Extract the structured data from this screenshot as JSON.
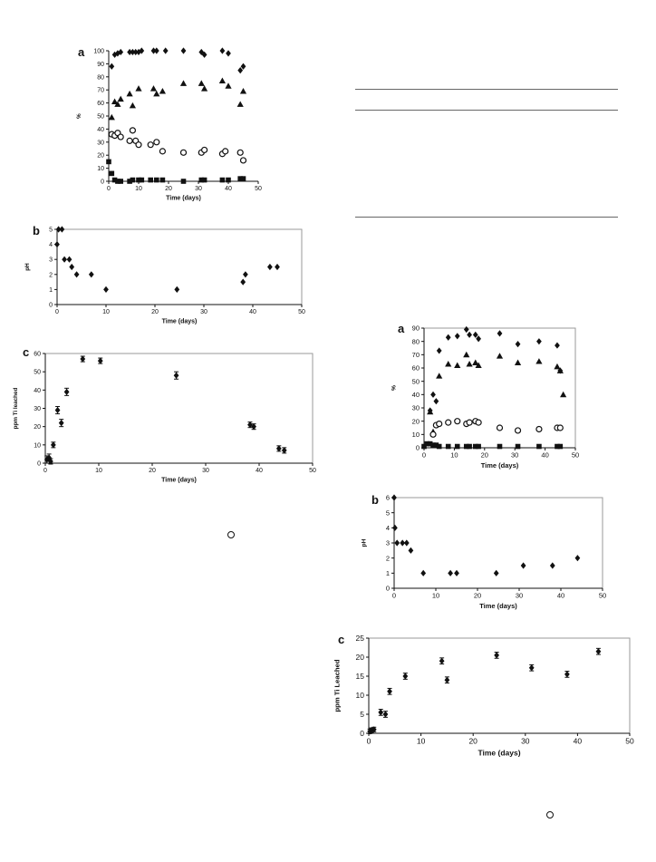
{
  "chart_data": [
    {
      "panel_label": "a",
      "type": "scatter",
      "xlabel": "Time (days)",
      "ylabel": "%",
      "xlim": [
        0,
        50
      ],
      "ylim": [
        0,
        100
      ],
      "xticks": [
        0,
        10,
        20,
        30,
        40,
        50
      ],
      "yticks": [
        0,
        10,
        20,
        30,
        40,
        50,
        60,
        70,
        80,
        90,
        100
      ],
      "frame": false,
      "series": [
        {
          "marker": "diamond",
          "points": [
            [
              1,
              88
            ],
            [
              2,
              97
            ],
            [
              3,
              98
            ],
            [
              4,
              99
            ],
            [
              7,
              99
            ],
            [
              8,
              99
            ],
            [
              9,
              99
            ],
            [
              10,
              99
            ],
            [
              11,
              100
            ],
            [
              15,
              100
            ],
            [
              16,
              100
            ],
            [
              19,
              100
            ],
            [
              25,
              100
            ],
            [
              31,
              99
            ],
            [
              32,
              97
            ],
            [
              38,
              100
            ],
            [
              40,
              98
            ],
            [
              44,
              85
            ],
            [
              45,
              88
            ]
          ]
        },
        {
          "marker": "triangle",
          "points": [
            [
              1,
              49
            ],
            [
              2,
              61
            ],
            [
              3,
              59
            ],
            [
              4,
              63
            ],
            [
              7,
              67
            ],
            [
              8,
              58
            ],
            [
              10,
              71
            ],
            [
              15,
              71
            ],
            [
              16,
              67
            ],
            [
              18,
              69
            ],
            [
              25,
              75
            ],
            [
              31,
              75
            ],
            [
              32,
              71
            ],
            [
              38,
              77
            ],
            [
              40,
              73
            ],
            [
              44,
              59
            ],
            [
              45,
              69
            ]
          ]
        },
        {
          "marker": "open-circle",
          "points": [
            [
              1,
              36
            ],
            [
              2,
              35
            ],
            [
              3,
              37
            ],
            [
              4,
              34
            ],
            [
              7,
              31
            ],
            [
              8,
              39
            ],
            [
              9,
              31
            ],
            [
              10,
              28
            ],
            [
              14,
              28
            ],
            [
              16,
              30
            ],
            [
              18,
              23
            ],
            [
              25,
              22
            ],
            [
              31,
              22
            ],
            [
              32,
              24
            ],
            [
              38,
              21
            ],
            [
              39,
              23
            ],
            [
              44,
              22
            ],
            [
              45,
              16
            ]
          ]
        },
        {
          "marker": "square",
          "points": [
            [
              0,
              15
            ],
            [
              1,
              6
            ],
            [
              2,
              1
            ],
            [
              3,
              0
            ],
            [
              4,
              0
            ],
            [
              7,
              0
            ],
            [
              8,
              1
            ],
            [
              10,
              1
            ],
            [
              11,
              1
            ],
            [
              14,
              1
            ],
            [
              16,
              1
            ],
            [
              18,
              1
            ],
            [
              25,
              0
            ],
            [
              31,
              1
            ],
            [
              32,
              1
            ],
            [
              38,
              1
            ],
            [
              40,
              1
            ],
            [
              44,
              2
            ],
            [
              45,
              2
            ]
          ]
        }
      ]
    },
    {
      "panel_label": "b",
      "type": "scatter",
      "xlabel": "Time (days)",
      "ylabel": "pH",
      "xlim": [
        0,
        50
      ],
      "ylim": [
        0,
        5
      ],
      "xticks": [
        0,
        10,
        20,
        30,
        40,
        50
      ],
      "yticks": [
        0,
        1,
        2,
        3,
        4,
        5
      ],
      "frame": true,
      "series": [
        {
          "marker": "diamond",
          "points": [
            [
              0,
              4
            ],
            [
              0.3,
              5
            ],
            [
              1,
              5
            ],
            [
              1.5,
              3
            ],
            [
              2.5,
              3
            ],
            [
              3,
              2.5
            ],
            [
              4,
              2
            ],
            [
              7,
              2
            ],
            [
              10,
              1
            ],
            [
              24.5,
              1
            ],
            [
              38,
              1.5
            ],
            [
              38.5,
              2
            ],
            [
              43.5,
              2.5
            ],
            [
              45,
              2.5
            ]
          ]
        }
      ]
    },
    {
      "panel_label": "c",
      "type": "scatter",
      "xlabel": "Time (days)",
      "ylabel": "ppm Ti leached",
      "xlim": [
        0,
        50
      ],
      "ylim": [
        0,
        60
      ],
      "xticks": [
        0,
        10,
        20,
        30,
        40,
        50
      ],
      "yticks": [
        0,
        10,
        20,
        30,
        40,
        50,
        60
      ],
      "frame": true,
      "series": [
        {
          "marker": "diamond",
          "error_bars": true,
          "points": [
            [
              0.3,
              2,
              2
            ],
            [
              0.7,
              3,
              2
            ],
            [
              1,
              1,
              1.5
            ],
            [
              1.5,
              10,
              1.5
            ],
            [
              2.3,
              29,
              2
            ],
            [
              3,
              22,
              2
            ],
            [
              4,
              39,
              2
            ],
            [
              7,
              57,
              1.5
            ],
            [
              10.3,
              56,
              1.5
            ],
            [
              24.5,
              48,
              2
            ],
            [
              38.3,
              21,
              1.5
            ],
            [
              39,
              20,
              1.5
            ],
            [
              43.7,
              8,
              1.5
            ],
            [
              44.7,
              7,
              1.5
            ]
          ]
        }
      ]
    },
    {
      "panel_label": "a",
      "type": "scatter",
      "xlabel": "Time (days)",
      "ylabel": "%",
      "xlim": [
        0,
        50
      ],
      "ylim": [
        0,
        90
      ],
      "xticks": [
        0,
        10,
        20,
        30,
        40,
        50
      ],
      "yticks": [
        0,
        10,
        20,
        30,
        40,
        50,
        60,
        70,
        80,
        90
      ],
      "frame": true,
      "series": [
        {
          "marker": "diamond",
          "points": [
            [
              2,
              28
            ],
            [
              3,
              40
            ],
            [
              4,
              35
            ],
            [
              5,
              73
            ],
            [
              8,
              83
            ],
            [
              11,
              84
            ],
            [
              14,
              89
            ],
            [
              15,
              85
            ],
            [
              17,
              85
            ],
            [
              18,
              82
            ],
            [
              25,
              86
            ],
            [
              31,
              78
            ],
            [
              38,
              80
            ],
            [
              44,
              77
            ],
            [
              45,
              58
            ]
          ]
        },
        {
          "marker": "triangle",
          "points": [
            [
              2,
              27
            ],
            [
              3,
              12
            ],
            [
              5,
              54
            ],
            [
              8,
              63
            ],
            [
              11,
              62
            ],
            [
              14,
              70
            ],
            [
              15,
              63
            ],
            [
              17,
              64
            ],
            [
              18,
              62
            ],
            [
              25,
              69
            ],
            [
              31,
              64
            ],
            [
              38,
              65
            ],
            [
              44,
              61
            ],
            [
              45,
              58
            ],
            [
              46,
              40
            ]
          ]
        },
        {
          "marker": "open-circle",
          "points": [
            [
              3,
              10
            ],
            [
              4,
              17
            ],
            [
              5,
              18
            ],
            [
              8,
              19
            ],
            [
              11,
              20
            ],
            [
              14,
              18
            ],
            [
              15,
              19
            ],
            [
              17,
              20
            ],
            [
              18,
              19
            ],
            [
              25,
              15
            ],
            [
              31,
              13
            ],
            [
              38,
              14
            ],
            [
              44,
              15
            ],
            [
              45,
              15
            ]
          ]
        },
        {
          "marker": "square",
          "points": [
            [
              0,
              1
            ],
            [
              1,
              3
            ],
            [
              2,
              3
            ],
            [
              3,
              2
            ],
            [
              4,
              2
            ],
            [
              5,
              1
            ],
            [
              8,
              1
            ],
            [
              11,
              1
            ],
            [
              14,
              1
            ],
            [
              15,
              1
            ],
            [
              17,
              1
            ],
            [
              18,
              1
            ],
            [
              25,
              1
            ],
            [
              31,
              1
            ],
            [
              38,
              1
            ],
            [
              44,
              1
            ],
            [
              45,
              1
            ]
          ]
        }
      ]
    },
    {
      "panel_label": "b",
      "type": "scatter",
      "xlabel": "Time (days)",
      "ylabel": "pH",
      "xlim": [
        0,
        50
      ],
      "ylim": [
        0,
        6
      ],
      "xticks": [
        0,
        10,
        20,
        30,
        40,
        50
      ],
      "yticks": [
        0,
        1,
        2,
        3,
        4,
        5,
        6
      ],
      "frame": true,
      "series": [
        {
          "marker": "diamond",
          "points": [
            [
              0,
              6
            ],
            [
              0.2,
              4
            ],
            [
              0.7,
              3
            ],
            [
              2,
              3
            ],
            [
              3,
              3
            ],
            [
              4,
              2.5
            ],
            [
              7,
              1
            ],
            [
              13.5,
              1
            ],
            [
              15,
              1
            ],
            [
              24.5,
              1
            ],
            [
              31,
              1.5
            ],
            [
              38,
              1.5
            ],
            [
              44,
              2
            ]
          ]
        }
      ]
    },
    {
      "panel_label": "c",
      "type": "scatter",
      "xlabel": "Time (days)",
      "ylabel": "ppm Ti Leached",
      "xlim": [
        0,
        50
      ],
      "ylim": [
        0,
        25
      ],
      "xticks": [
        0,
        10,
        20,
        30,
        40,
        50
      ],
      "yticks": [
        0,
        5,
        10,
        15,
        20,
        25
      ],
      "frame": true,
      "series": [
        {
          "marker": "diamond",
          "error_bars": true,
          "points": [
            [
              0.2,
              0.5,
              0.6
            ],
            [
              0.5,
              0.8,
              0.6
            ],
            [
              1,
              1,
              0.6
            ],
            [
              2.3,
              5.5,
              0.8
            ],
            [
              3.2,
              5,
              0.8
            ],
            [
              4,
              11,
              0.8
            ],
            [
              7,
              15,
              0.8
            ],
            [
              14,
              19,
              0.8
            ],
            [
              15,
              14,
              0.8
            ],
            [
              24.5,
              20.5,
              0.8
            ],
            [
              31.2,
              17.2,
              0.8
            ],
            [
              38,
              15.5,
              0.8
            ],
            [
              44,
              21.5,
              0.8
            ]
          ]
        }
      ]
    }
  ]
}
